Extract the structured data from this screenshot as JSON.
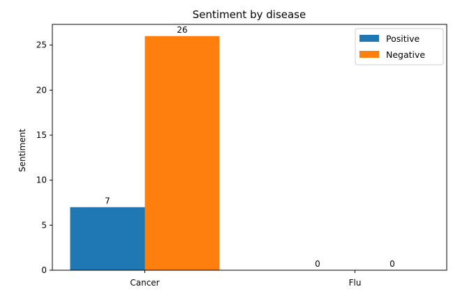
{
  "chart_data": {
    "type": "bar",
    "title": "Sentiment by disease",
    "xlabel": "",
    "ylabel": "Sentiment",
    "categories": [
      "Cancer",
      "Flu"
    ],
    "series": [
      {
        "name": "Positive",
        "values": [
          7,
          0
        ],
        "color": "#1f77b4"
      },
      {
        "name": "Negative",
        "values": [
          26,
          0
        ],
        "color": "#ff7f0e"
      }
    ],
    "data_labels": [
      [
        "7",
        "0"
      ],
      [
        "26",
        "0"
      ]
    ],
    "yticks": [
      0,
      5,
      10,
      15,
      20,
      25
    ],
    "ytick_labels": [
      "0",
      "5",
      "10",
      "15",
      "20",
      "25"
    ],
    "ylim": [
      0,
      27.3
    ],
    "grid": false,
    "legend_position": "top-right"
  }
}
